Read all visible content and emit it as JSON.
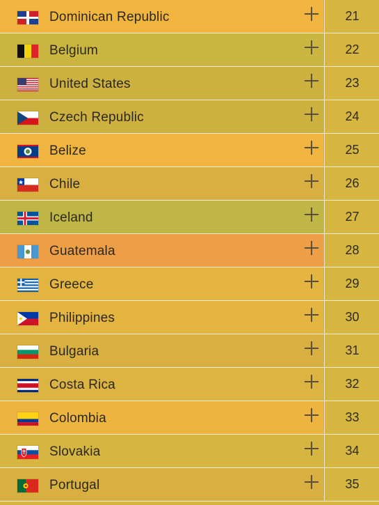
{
  "rows": [
    {
      "name": "Dominican Republic",
      "rank": "21",
      "flag": "flag-dominican-republic-icon",
      "bg": "#f1b43f"
    },
    {
      "name": "Belgium",
      "rank": "22",
      "flag": "flag-belgium-icon",
      "bg": "#cbb541"
    },
    {
      "name": "United States",
      "rank": "23",
      "flag": "flag-united-states-icon",
      "bg": "#ccb040"
    },
    {
      "name": "Czech Republic",
      "rank": "24",
      "flag": "flag-czech-republic-icon",
      "bg": "#ccb040"
    },
    {
      "name": "Belize",
      "rank": "25",
      "flag": "flag-belize-icon",
      "bg": "#f1b43f"
    },
    {
      "name": "Chile",
      "rank": "26",
      "flag": "flag-chile-icon",
      "bg": "#d7b041"
    },
    {
      "name": "Iceland",
      "rank": "27",
      "flag": "flag-iceland-icon",
      "bg": "#bfb646"
    },
    {
      "name": "Guatemala",
      "rank": "28",
      "flag": "flag-guatemala-icon",
      "bg": "#ee9e45"
    },
    {
      "name": "Greece",
      "rank": "29",
      "flag": "flag-greece-icon",
      "bg": "#e3b540"
    },
    {
      "name": "Philippines",
      "rank": "30",
      "flag": "flag-philippines-icon",
      "bg": "#e3b540"
    },
    {
      "name": "Bulgaria",
      "rank": "31",
      "flag": "flag-bulgaria-icon",
      "bg": "#d7b041"
    },
    {
      "name": "Costa Rica",
      "rank": "32",
      "flag": "flag-costa-rica-icon",
      "bg": "#dcb442"
    },
    {
      "name": "Colombia",
      "rank": "33",
      "flag": "flag-colombia-icon",
      "bg": "#edb440"
    },
    {
      "name": "Slovakia",
      "rank": "34",
      "flag": "flag-slovakia-icon",
      "bg": "#d6b541"
    },
    {
      "name": "Portugal",
      "rank": "35",
      "flag": "flag-portugal-icon",
      "bg": "#d7b041"
    }
  ],
  "colors": {
    "divider": "#f3ecd0",
    "rank_bg": "#d6b541",
    "text": "#2b2820",
    "plus": "#5a4f3a"
  }
}
